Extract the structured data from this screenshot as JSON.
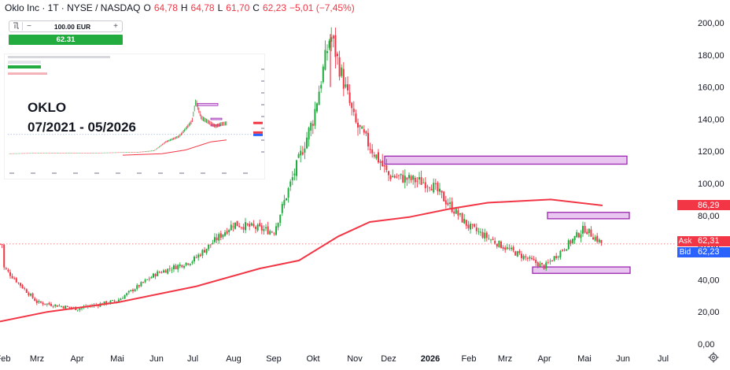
{
  "header": {
    "symbol": "Oklo Inc · 1T · NYSE / NASDAQ",
    "o_label": "O",
    "o_value": "64,78",
    "h_label": "H",
    "h_value": "64,78",
    "l_label": "L",
    "l_value": "61,70",
    "c_label": "C",
    "c_value": "62,23",
    "change": "−5,01 (−7,45%)"
  },
  "trade_widget": {
    "order_icon": "order-ticket-icon",
    "minus": "−",
    "quantity": "100.00 EUR",
    "plus": "+",
    "price": "62.31"
  },
  "overlay": {
    "ticker": "OKLO",
    "range": "07/2021 - 05/2026"
  },
  "price_tags": {
    "ma_value": "86,29",
    "ask_label": "Ask",
    "ask_value": "62,31",
    "bid_label": "Bid",
    "bid_value": "62,23"
  },
  "colors": {
    "up": "#22ab3e",
    "down": "#f23645",
    "ma": "#f23645",
    "zone_fill": "#e9c6f0",
    "zone_stroke": "#9c27b0",
    "ask": "#f23645",
    "bid": "#2962ff"
  },
  "chart_data": {
    "type": "candlestick",
    "title": "Oklo Inc · 1T · NYSE / NASDAQ",
    "x_ticks": [
      "Feb",
      "Mrz",
      "Apr",
      "Mai",
      "Jun",
      "Jul",
      "Aug",
      "Sep",
      "Okt",
      "Nov",
      "Dez",
      "2026",
      "Feb",
      "Mrz",
      "Apr",
      "Mai",
      "Jun",
      "Jul"
    ],
    "y_ticks": [
      "0,00",
      "20,00",
      "40,00",
      "60,00",
      "80,00",
      "100,00",
      "120,00",
      "140,00",
      "160,00",
      "180,00",
      "200,00"
    ],
    "ylim": [
      0,
      200
    ],
    "grid": false,
    "last_ohlc": {
      "open": 64.78,
      "high": 64.78,
      "low": 61.7,
      "close": 62.23,
      "change": -5.01,
      "change_pct": -7.45
    },
    "close_path_approx": [
      {
        "x": "Feb",
        "close": 48
      },
      {
        "x": "Mrz",
        "close": 26
      },
      {
        "x": "Apr",
        "close": 22
      },
      {
        "x": "Mai",
        "close": 27
      },
      {
        "x": "Jun",
        "close": 44
      },
      {
        "x": "Jul",
        "close": 52
      },
      {
        "x": "Aug",
        "close": 75
      },
      {
        "x": "Sep",
        "close": 70
      },
      {
        "x": "Okt",
        "close": 140
      },
      {
        "x": "Okt-peak",
        "close": 193
      },
      {
        "x": "Nov",
        "close": 138
      },
      {
        "x": "Dez",
        "close": 105
      },
      {
        "x": "2026",
        "close": 100
      },
      {
        "x": "Feb",
        "close": 73
      },
      {
        "x": "Mrz",
        "close": 60
      },
      {
        "x": "Apr",
        "close": 48
      },
      {
        "x": "Mai",
        "close": 72
      },
      {
        "x": "Mai-end",
        "close": 62.23
      }
    ],
    "moving_average": {
      "last_value": 86.29
    },
    "zones": [
      {
        "from": 112,
        "to": 117
      },
      {
        "from": 78,
        "to": 82
      },
      {
        "from": 44,
        "to": 48
      }
    ],
    "ask": 62.31,
    "bid": 62.23
  }
}
